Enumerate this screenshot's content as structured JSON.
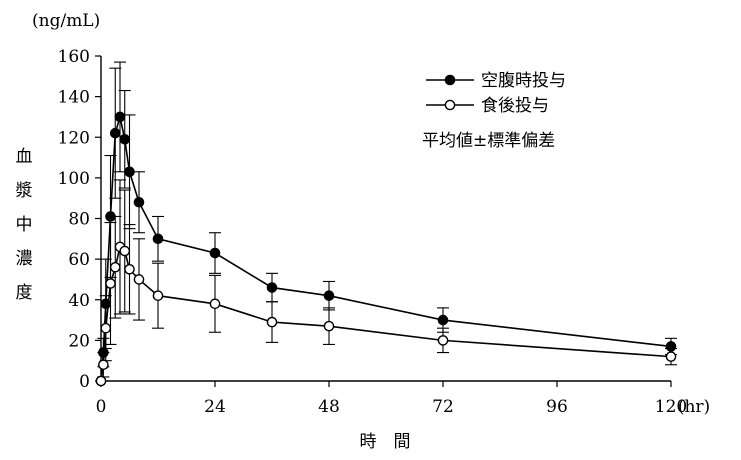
{
  "chart_data": {
    "type": "line",
    "unit_label": "(ng/mL)",
    "x_unit_label": "(hr)",
    "xlabel": "時　間",
    "ylabel": "血漿中濃度",
    "xlim": [
      0,
      120
    ],
    "ylim": [
      0,
      160
    ],
    "x_ticks": [
      0,
      24,
      48,
      72,
      96,
      120
    ],
    "y_ticks": [
      0,
      20,
      40,
      60,
      80,
      100,
      120,
      140,
      160
    ],
    "grid": false,
    "legend_position": "top-right",
    "legend_note": "平均値±標準偏差",
    "series": [
      {
        "name": "空腹時投与",
        "marker": "filled-circle",
        "color": "#000000",
        "points": [
          {
            "x": 0,
            "y": 0,
            "sd": 0
          },
          {
            "x": 0.5,
            "y": 14,
            "sd": 7
          },
          {
            "x": 1,
            "y": 38,
            "sd": 22
          },
          {
            "x": 2,
            "y": 81,
            "sd": 30
          },
          {
            "x": 3,
            "y": 122,
            "sd": 32
          },
          {
            "x": 4,
            "y": 130,
            "sd": 27
          },
          {
            "x": 5,
            "y": 119,
            "sd": 24
          },
          {
            "x": 6,
            "y": 103,
            "sd": 28
          },
          {
            "x": 8,
            "y": 88,
            "sd": 15
          },
          {
            "x": 12,
            "y": 70,
            "sd": 11
          },
          {
            "x": 24,
            "y": 63,
            "sd": 10
          },
          {
            "x": 36,
            "y": 46,
            "sd": 7
          },
          {
            "x": 48,
            "y": 42,
            "sd": 7
          },
          {
            "x": 72,
            "y": 30,
            "sd": 6
          },
          {
            "x": 120,
            "y": 17,
            "sd": 4
          }
        ]
      },
      {
        "name": "食後投与",
        "marker": "open-circle",
        "color": "#000000",
        "points": [
          {
            "x": 0,
            "y": 0,
            "sd": 0
          },
          {
            "x": 0.5,
            "y": 8,
            "sd": 6
          },
          {
            "x": 1,
            "y": 26,
            "sd": 16
          },
          {
            "x": 2,
            "y": 48,
            "sd": 30
          },
          {
            "x": 3,
            "y": 56,
            "sd": 25
          },
          {
            "x": 4,
            "y": 66,
            "sd": 33
          },
          {
            "x": 5,
            "y": 64,
            "sd": 30
          },
          {
            "x": 6,
            "y": 55,
            "sd": 22
          },
          {
            "x": 8,
            "y": 50,
            "sd": 20
          },
          {
            "x": 12,
            "y": 42,
            "sd": 16
          },
          {
            "x": 24,
            "y": 38,
            "sd": 14
          },
          {
            "x": 36,
            "y": 29,
            "sd": 10
          },
          {
            "x": 48,
            "y": 27,
            "sd": 9
          },
          {
            "x": 72,
            "y": 20,
            "sd": 6
          },
          {
            "x": 120,
            "y": 12,
            "sd": 4
          }
        ]
      }
    ]
  }
}
